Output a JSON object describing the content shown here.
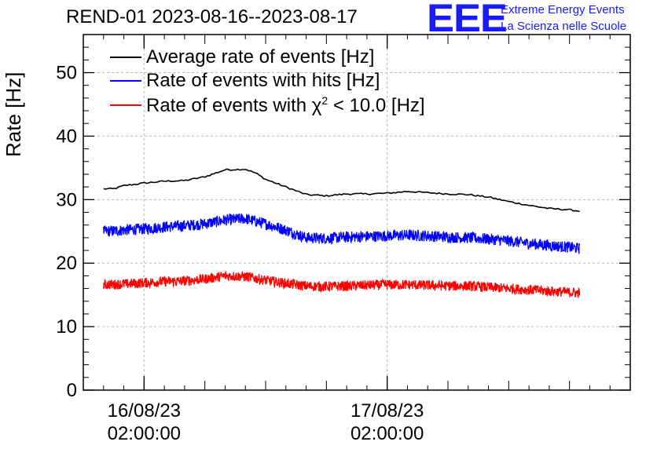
{
  "title": "REND-01 2023-08-16--2023-08-17",
  "logo": {
    "mark": "EEE",
    "line1": "Extreme Energy Events",
    "line2": "La Scienza nelle Scuole"
  },
  "colors": {
    "average": "#000000",
    "hits": "#0000ff",
    "chi2": "#ff0000",
    "logo": "#1a1aff"
  },
  "legend": {
    "average": "Average rate of events [Hz]",
    "hits": "Rate of events with hits [Hz]",
    "chi2_prefix": "Rate of events with ",
    "chi2_symbol": "χ",
    "chi2_exp": "2",
    "chi2_suffix": " < 10.0 [Hz]"
  },
  "chart_data": {
    "type": "line",
    "title": "REND-01 2023-08-16--2023-08-17",
    "ylabel": "Rate [Hz]",
    "xlabel": "",
    "xlim_hours": [
      -3,
      24
    ],
    "ylim": [
      0,
      56
    ],
    "y_ticks": [
      0,
      10,
      20,
      30,
      40,
      50
    ],
    "x_ticks": [
      {
        "hour": 0,
        "label_date": "16/08/23",
        "label_time": "02:00:00"
      },
      {
        "hour": 12,
        "label_date": "17/08/23",
        "label_time": "02:00:00"
      }
    ],
    "grid": true,
    "legend_position": "top-left",
    "series": [
      {
        "name": "Average rate of events [Hz]",
        "key": "average",
        "x_hours": [
          -2,
          -1.5,
          -1,
          0,
          1,
          2,
          3,
          4,
          5,
          5.5,
          6,
          7,
          8,
          9,
          10,
          11,
          12,
          13,
          14,
          15,
          16,
          17,
          18,
          19,
          20,
          21,
          21.5
        ],
        "values": [
          31.7,
          31.7,
          32.2,
          32.6,
          32.9,
          33.0,
          33.6,
          34.7,
          34.8,
          34.2,
          33.2,
          32.0,
          30.8,
          30.6,
          30.9,
          30.9,
          31.0,
          31.3,
          31.1,
          30.9,
          30.8,
          30.4,
          29.7,
          29.1,
          28.6,
          28.4,
          28.2
        ]
      },
      {
        "name": "Rate of events with hits [Hz]",
        "key": "hits",
        "x_hours": [
          -2,
          -1,
          0,
          1,
          2,
          3,
          4,
          5,
          6,
          7,
          8,
          9,
          10,
          11,
          12,
          13,
          14,
          15,
          16,
          17,
          18,
          19,
          20,
          21,
          21.5
        ],
        "values": [
          25.0,
          25.2,
          25.4,
          25.7,
          25.9,
          26.2,
          26.8,
          27.0,
          26.2,
          25.2,
          24.0,
          23.9,
          24.1,
          24.2,
          24.3,
          24.4,
          24.3,
          24.1,
          24.0,
          23.8,
          23.5,
          23.1,
          22.8,
          22.5,
          22.3
        ],
        "noise": 0.9
      },
      {
        "name": "Rate of events with χ2 < 10.0 [Hz]",
        "key": "chi2",
        "x_hours": [
          -2,
          -1,
          0,
          1,
          2,
          3,
          4,
          5,
          6,
          7,
          8,
          9,
          10,
          11,
          12,
          13,
          14,
          15,
          16,
          17,
          18,
          19,
          20,
          21,
          21.5
        ],
        "values": [
          16.6,
          16.7,
          16.9,
          17.1,
          17.2,
          17.5,
          18.0,
          17.9,
          17.3,
          16.8,
          16.4,
          16.3,
          16.4,
          16.5,
          16.6,
          16.6,
          16.5,
          16.4,
          16.4,
          16.2,
          16.0,
          15.8,
          15.6,
          15.4,
          15.3
        ],
        "noise": 0.8
      }
    ]
  }
}
